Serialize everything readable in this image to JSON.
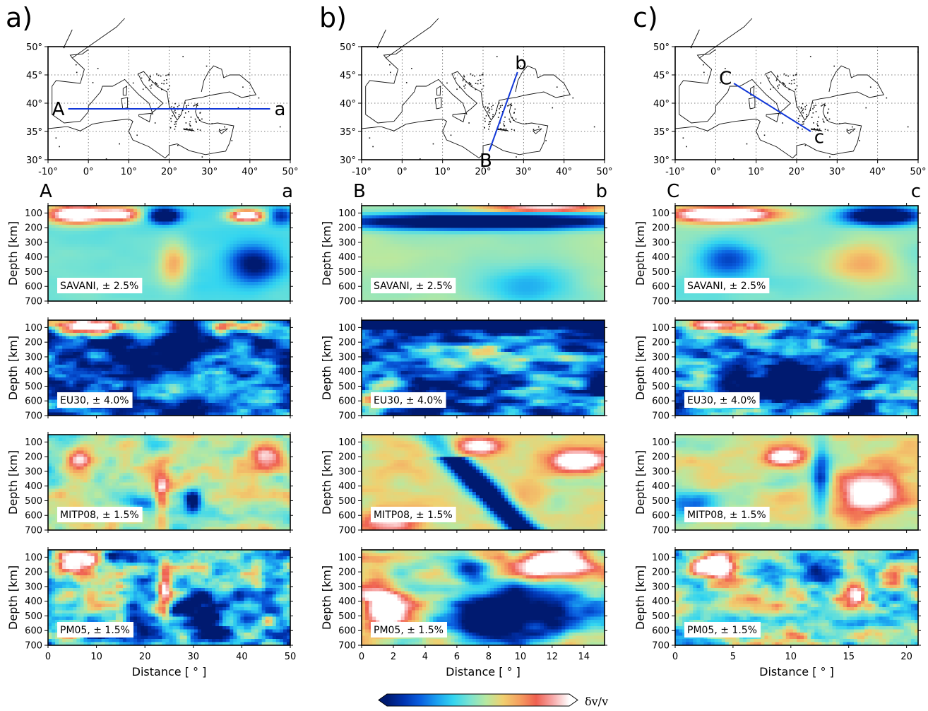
{
  "colorbar": {
    "label": "δv/v",
    "colors": [
      "#001a70",
      "#0033b0",
      "#0a5fe0",
      "#1a9ff0",
      "#33d5f0",
      "#7ae3d0",
      "#b8e8a0",
      "#f0d070",
      "#f5a060",
      "#ef6050",
      "#f7a8a8",
      "#ffffff"
    ]
  },
  "columns": [
    {
      "letter": "a)",
      "start_label": "A",
      "end_label": "a",
      "map": {
        "lon_ticks": [
          "-10°",
          "0°",
          "10°",
          "20°",
          "30°",
          "40°",
          "50°"
        ],
        "lat_ticks": [
          "50°",
          "45°",
          "40°",
          "35°",
          "30°"
        ],
        "profile": {
          "start_lon": -5,
          "start_lat": 39,
          "end_lon": 45,
          "end_lat": 39
        }
      },
      "distance_ticks": [
        "0",
        "10",
        "20",
        "30",
        "40",
        "50"
      ],
      "distance_max": 50,
      "xlabel": "Distance [ ° ]",
      "ylabel": "Depth [km]",
      "depth_ticks": [
        "100",
        "200",
        "300",
        "400",
        "500",
        "600",
        "700"
      ],
      "models": [
        {
          "label": "SAVANI, ± 2.5%"
        },
        {
          "label": "EU30, ± 4.0%"
        },
        {
          "label": "MITP08, ± 1.5%"
        },
        {
          "label": "PM05, ± 1.5%"
        }
      ]
    },
    {
      "letter": "b)",
      "start_label": "B",
      "end_label": "b",
      "map": {
        "lon_ticks": [
          "-10°",
          "0°",
          "10°",
          "20°",
          "30°",
          "40°",
          "50°"
        ],
        "lat_ticks": [
          "50°",
          "45°",
          "40°",
          "35°",
          "30°"
        ],
        "profile": {
          "start_lon": 21.5,
          "start_lat": 31.5,
          "end_lon": 28.5,
          "end_lat": 45.5
        }
      },
      "distance_ticks": [
        "0",
        "2",
        "4",
        "6",
        "8",
        "10",
        "12",
        "14"
      ],
      "distance_max": 15.3,
      "xlabel": "Distance [ ° ]",
      "ylabel": "Depth [km]",
      "depth_ticks": [
        "100",
        "200",
        "300",
        "400",
        "500",
        "600",
        "700"
      ],
      "models": [
        {
          "label": "SAVANI, ± 2.5%"
        },
        {
          "label": "EU30, ± 4.0%"
        },
        {
          "label": "MITP08, ± 1.5%"
        },
        {
          "label": "PM05, ± 1.5%"
        }
      ]
    },
    {
      "letter": "c)",
      "start_label": "C",
      "end_label": "c",
      "map": {
        "lon_ticks": [
          "-10°",
          "0°",
          "10°",
          "20°",
          "30°",
          "40°",
          "50°"
        ],
        "lat_ticks": [
          "50°",
          "45°",
          "40°",
          "35°",
          "30°"
        ],
        "profile": {
          "start_lon": 4.5,
          "start_lat": 43.5,
          "end_lon": 23.5,
          "end_lat": 35
        }
      },
      "distance_ticks": [
        "0",
        "5",
        "10",
        "15",
        "20"
      ],
      "distance_max": 21,
      "xlabel": "Distance [ ° ]",
      "ylabel": "Depth [km]",
      "depth_ticks": [
        "100",
        "200",
        "300",
        "400",
        "500",
        "600",
        "700"
      ],
      "models": [
        {
          "label": "SAVANI, ± 2.5%"
        },
        {
          "label": "EU30, ± 4.0%"
        },
        {
          "label": "MITP08, ± 1.5%"
        },
        {
          "label": "PM05, ± 1.5%"
        }
      ]
    }
  ],
  "chart_data": {
    "type": "heatmap",
    "description_kind": "tomographic depth cross-sections",
    "rows": [
      "SAVANI, ± 2.5%",
      "EU30, ± 4.0%",
      "MITP08, ± 1.5%",
      "PM05, ± 1.5%"
    ],
    "columns": [
      "A–a",
      "B–b",
      "C–c"
    ],
    "xlabel": "Distance [ ° ]",
    "ylabel": "Depth [km]",
    "ylim": [
      700,
      50
    ],
    "xlim": [
      [
        0,
        50
      ],
      [
        0,
        15.3
      ],
      [
        0,
        21
      ]
    ],
    "colorbar_label": "δv/v"
  }
}
